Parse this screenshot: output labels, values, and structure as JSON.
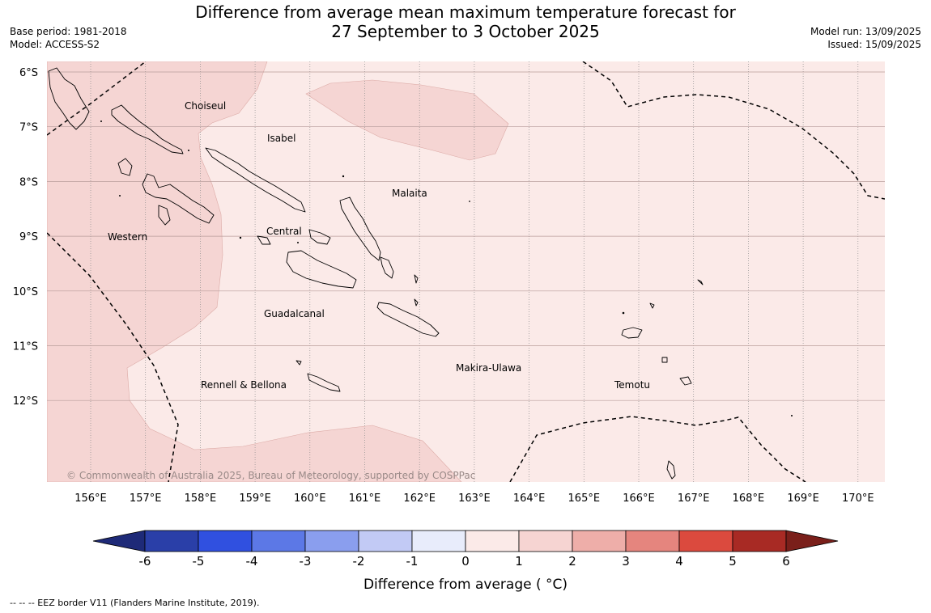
{
  "header": {
    "title_line1": "Difference from average mean maximum temperature forecast for",
    "title_line2": "27 September to 3 October 2025",
    "base_period": "Base period: 1981-2018",
    "model": "Model: ACCESS-S2",
    "model_run": "Model run: 13/09/2025",
    "issued": "Issued: 15/09/2025"
  },
  "map": {
    "lat_labels": [
      "6°S",
      "7°S",
      "8°S",
      "9°S",
      "10°S",
      "11°S",
      "12°S"
    ],
    "lon_labels": [
      "156°E",
      "157°E",
      "158°E",
      "159°E",
      "160°E",
      "161°E",
      "162°E",
      "163°E",
      "164°E",
      "165°E",
      "166°E",
      "167°E",
      "168°E",
      "169°E",
      "170°E"
    ],
    "province_labels": [
      "Choiseul",
      "Isabel",
      "Malaita",
      "Western",
      "Central",
      "Guadalcanal",
      "Makira-Ulawa",
      "Rennell & Bellona",
      "Temotu"
    ],
    "copyright": "© Commonwealth of Australia 2025, Bureau of Meteorology, supported by COSPPac",
    "background_color": "#fbeae8",
    "warmer_color": "#f5d5d3"
  },
  "colorbar": {
    "ticks": [
      "-6",
      "-5",
      "-4",
      "-3",
      "-2",
      "-1",
      "0",
      "1",
      "2",
      "3",
      "4",
      "5",
      "6"
    ],
    "label": "Difference from average ( °C)",
    "colors": [
      "#2a3fa8",
      "#3050e0",
      "#5c78e6",
      "#8a9eee",
      "#c2caf5",
      "#e8ecfb",
      "#fbeae8",
      "#f6d4d2",
      "#eeaea9",
      "#e5857e",
      "#db4a3e",
      "#a82a24"
    ],
    "low_extend_color": "#1e2a78",
    "high_extend_color": "#7a1f1a"
  },
  "footnote": "--  --  -- EEZ border V11 (Flanders Marine Institute, 2019)."
}
